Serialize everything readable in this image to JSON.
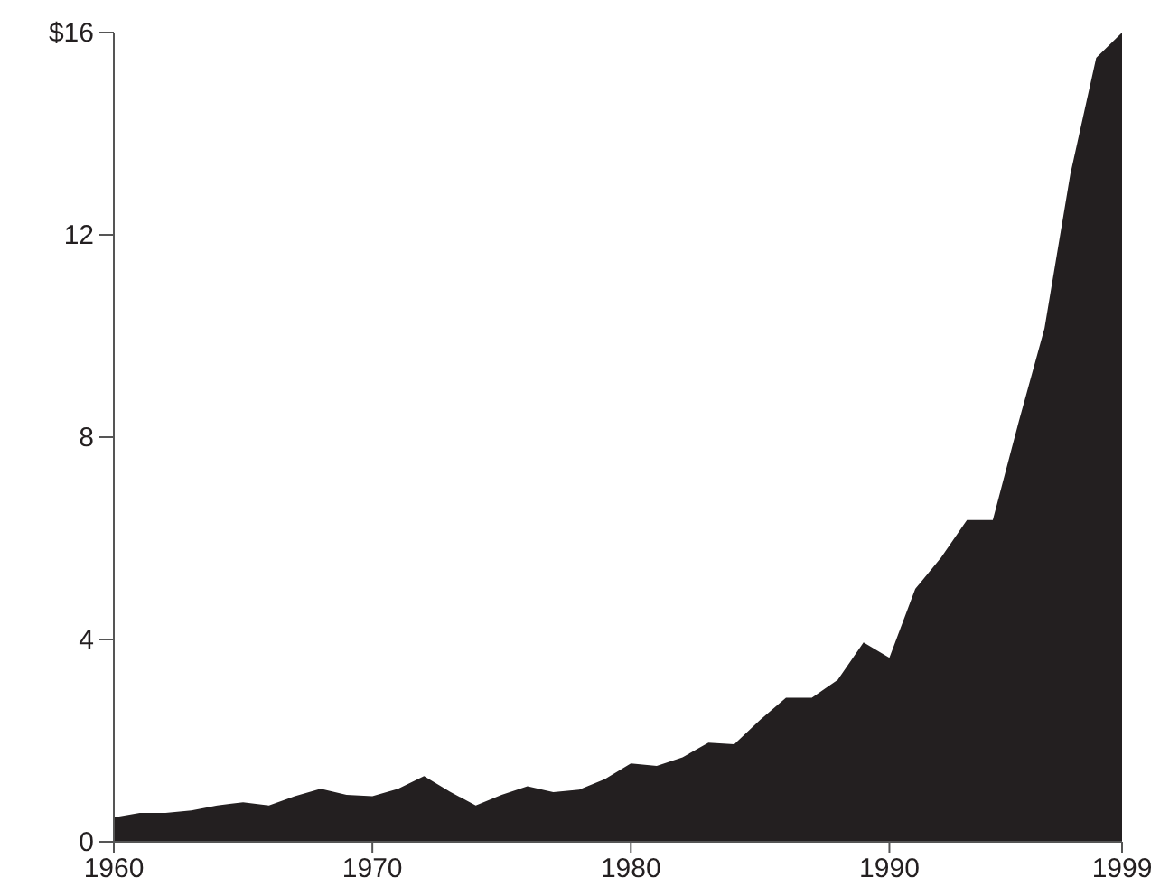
{
  "chart_data": {
    "type": "area",
    "x": [
      1960,
      1961,
      1962,
      1963,
      1964,
      1965,
      1966,
      1967,
      1968,
      1969,
      1970,
      1971,
      1972,
      1973,
      1974,
      1975,
      1976,
      1977,
      1978,
      1979,
      1980,
      1981,
      1982,
      1983,
      1984,
      1985,
      1986,
      1987,
      1988,
      1989,
      1990,
      1991,
      1992,
      1993,
      1994,
      1995,
      1996,
      1997,
      1998,
      1999
    ],
    "series": [
      {
        "color": "#231f20",
        "values": [
          0.48,
          0.57,
          0.57,
          0.62,
          0.72,
          0.78,
          0.72,
          0.9,
          1.05,
          0.93,
          0.9,
          1.05,
          1.3,
          0.99,
          0.72,
          0.93,
          1.1,
          0.98,
          1.03,
          1.24,
          1.55,
          1.5,
          1.67,
          1.96,
          1.93,
          2.41,
          2.85,
          2.85,
          3.2,
          3.94,
          3.64,
          5.0,
          5.62,
          6.36,
          6.36,
          8.3,
          10.15,
          13.2,
          15.5,
          16.0
        ]
      }
    ],
    "xlim": [
      1960,
      1999
    ],
    "xticks": [
      1960,
      1970,
      1980,
      1990,
      1999
    ],
    "ylim": [
      0,
      16
    ],
    "yticks": [
      0,
      4,
      8,
      12,
      {
        "value": 16,
        "label": "$16"
      }
    ]
  }
}
